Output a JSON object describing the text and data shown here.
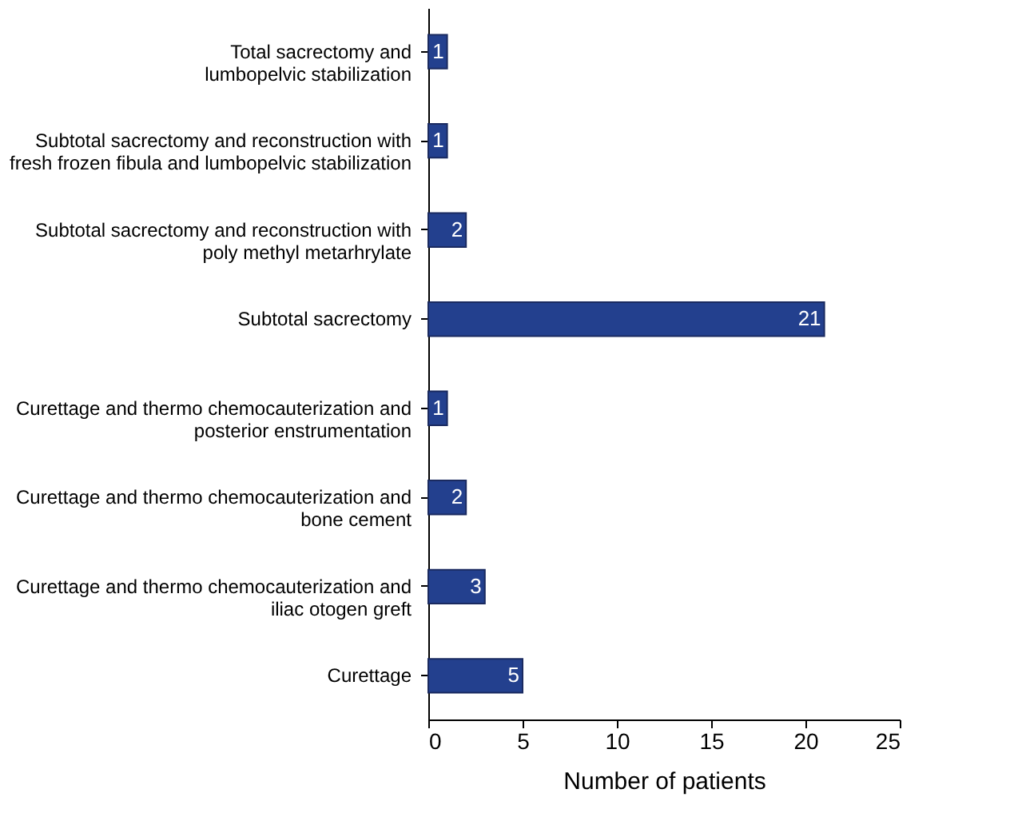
{
  "chart_data": {
    "type": "bar",
    "orientation": "horizontal",
    "xlabel": "Number of patients",
    "categories": [
      "Total sacrectomy and\nlumbopelvic stabilization",
      "Subtotal sacrectomy and reconstruction with\nfresh frozen fibula and lumbopelvic stabilization",
      "Subtotal sacrectomy and reconstruction with\npoly methyl metarhrylate",
      "Subtotal sacrectomy",
      "Curettage and thermo chemocauterization and\nposterior enstrumentation",
      "Curettage and thermo chemocauterization and\nbone cement",
      "Curettage and thermo chemocauterization and\niliac otogen greft",
      "Curettage"
    ],
    "values": [
      1,
      1,
      2,
      21,
      1,
      2,
      3,
      5
    ],
    "color": "#23408e",
    "xlim": [
      0,
      25
    ],
    "xticks": [
      0,
      5,
      10,
      15,
      20,
      25
    ],
    "grid": false,
    "data_labels": true
  }
}
